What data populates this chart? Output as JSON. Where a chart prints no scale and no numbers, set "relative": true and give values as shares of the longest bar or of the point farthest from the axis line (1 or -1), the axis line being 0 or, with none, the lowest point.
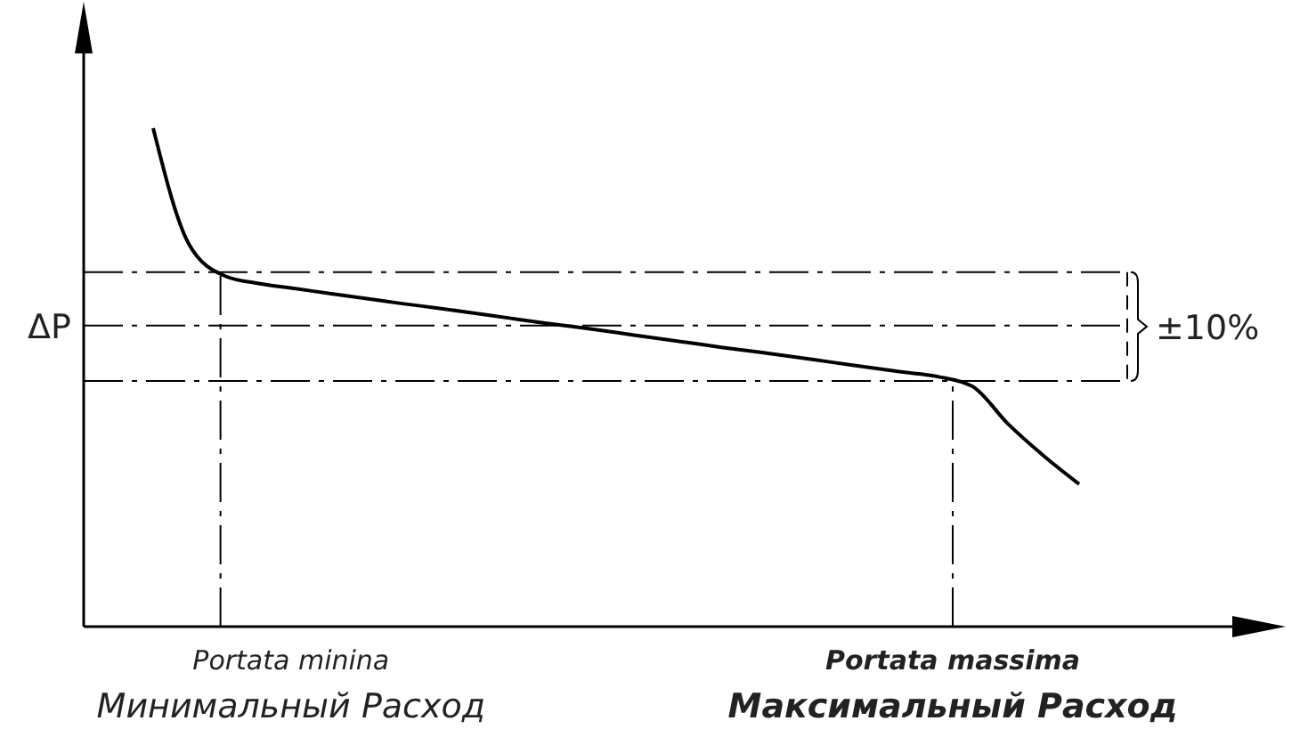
{
  "chart_data": {
    "type": "line",
    "relative": true,
    "categories": [
      null,
      null,
      null,
      null,
      null,
      null,
      null,
      null,
      null,
      null,
      null,
      null,
      null,
      null,
      null,
      null,
      null,
      null,
      null,
      null,
      null,
      null,
      null,
      null,
      null,
      null,
      null
    ],
    "series": [
      {
        "color": "#000000",
        "values": [
          1,
          0.768,
          0.704,
          0.688,
          0.678,
          0.668,
          0.658,
          0.648,
          0.639,
          0.629,
          0.619,
          0.609,
          0.6,
          0.59,
          0.58,
          0.57,
          0.56,
          0.551,
          0.541,
          0.531,
          0.521,
          0.511,
          0.502,
          0.482,
          0.407,
          0.343,
          0.286
        ]
      }
    ],
    "ref_lines": [
      {
        "axis": "y",
        "value": 0.711,
        "line_style": "dashed"
      },
      {
        "axis": "y",
        "value": 0.604,
        "label": "ΔP",
        "line_style": "dashed"
      },
      {
        "axis": "y",
        "value": 0.493,
        "line_style": "dashed"
      }
    ],
    "annotations": [
      "±10%",
      "Portata minina\nМинимальный Расход",
      "Portata massima\nМаксимальный  Расход"
    ],
    "marker": "none",
    "line_style": "solid"
  }
}
